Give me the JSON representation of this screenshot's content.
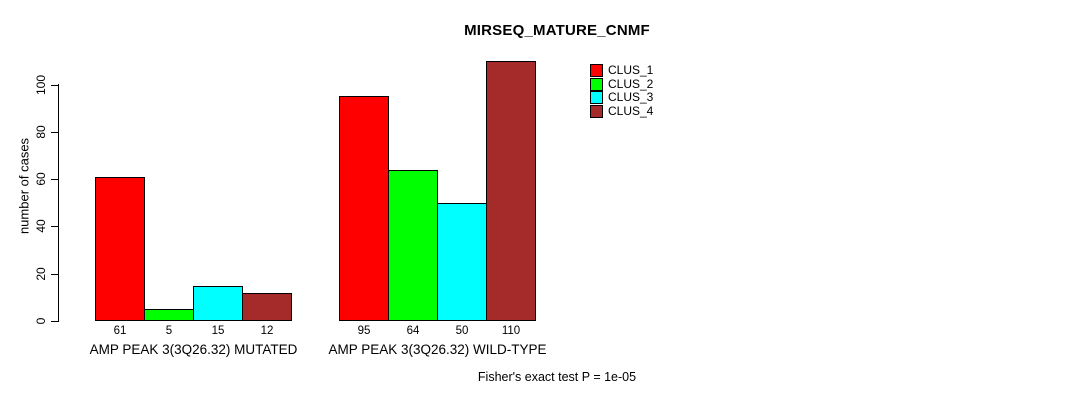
{
  "chart_data": {
    "type": "bar",
    "title": "MIRSEQ_MATURE_CNMF",
    "ylabel": "number of cases",
    "xlabel": "",
    "yticks": [
      0,
      20,
      40,
      60,
      80,
      100
    ],
    "ylim": [
      0,
      110
    ],
    "grid": false,
    "legend_position": "top-right",
    "categories": [
      "AMP PEAK 3(3Q26.32) MUTATED",
      "AMP PEAK 3(3Q26.32) WILD-TYPE"
    ],
    "series": [
      {
        "name": "CLUS_1",
        "color": "#FF0000",
        "values": [
          61,
          95
        ]
      },
      {
        "name": "CLUS_2",
        "color": "#00FF00",
        "values": [
          5,
          64
        ]
      },
      {
        "name": "CLUS_3",
        "color": "#00FFFF",
        "values": [
          15,
          50
        ]
      },
      {
        "name": "CLUS_4",
        "color": "#A52A2A",
        "values": [
          12,
          110
        ]
      }
    ],
    "footnote": "Fisher's exact test P = 1e-05"
  }
}
